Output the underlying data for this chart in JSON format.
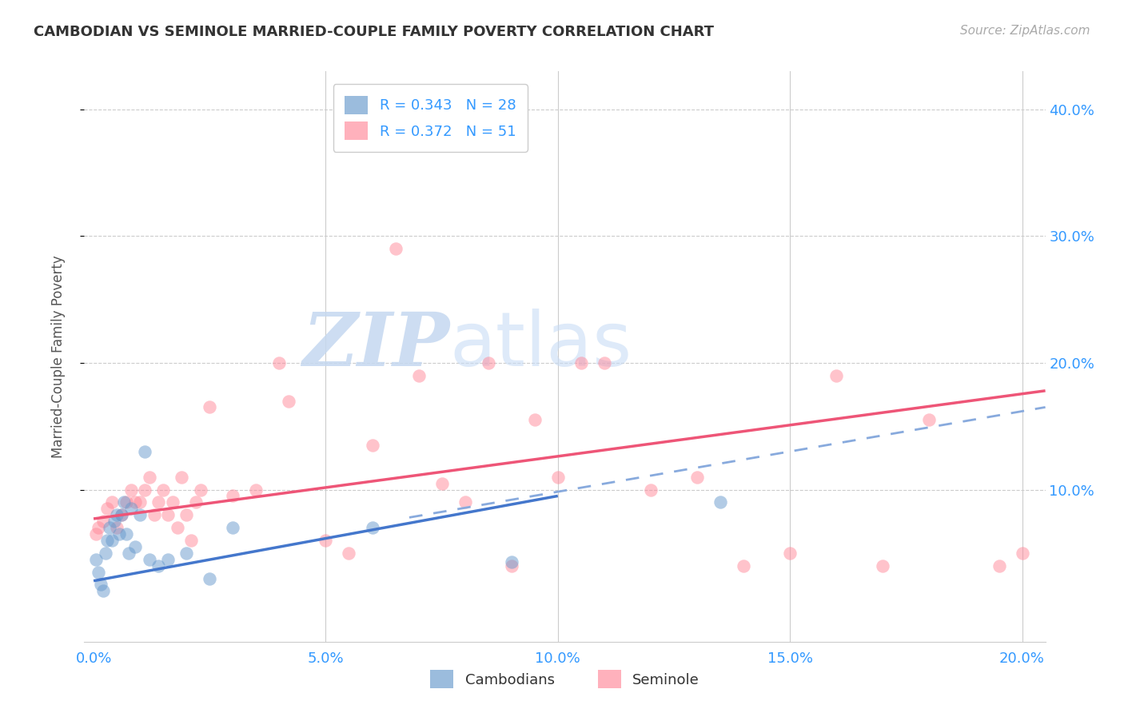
{
  "title": "CAMBODIAN VS SEMINOLE MARRIED-COUPLE FAMILY POVERTY CORRELATION CHART",
  "source": "Source: ZipAtlas.com",
  "ylabel": "Married-Couple Family Poverty",
  "xlim": [
    -0.002,
    0.205
  ],
  "ylim": [
    -0.02,
    0.43
  ],
  "xtick_vals": [
    0.0,
    0.05,
    0.1,
    0.15,
    0.2
  ],
  "xtick_labels": [
    "0.0%",
    "5.0%",
    "10.0%",
    "15.0%",
    "20.0%"
  ],
  "ytick_vals": [
    0.1,
    0.2,
    0.3,
    0.4
  ],
  "ytick_labels": [
    "10.0%",
    "20.0%",
    "30.0%",
    "40.0%"
  ],
  "cambodian_color": "#6699CC",
  "seminole_color": "#FF8899",
  "legend_label_cambodian": "R = 0.343   N = 28",
  "legend_label_seminole": "R = 0.372   N = 51",
  "bottom_legend_cambodian": "Cambodians",
  "bottom_legend_seminole": "Seminole",
  "background_color": "#FFFFFF",
  "grid_color": "#CCCCCC",
  "title_color": "#333333",
  "axis_label_color": "#3399FF",
  "cambodian_x": [
    0.0005,
    0.001,
    0.0015,
    0.002,
    0.0025,
    0.003,
    0.0035,
    0.004,
    0.0045,
    0.005,
    0.0055,
    0.006,
    0.0065,
    0.007,
    0.0075,
    0.008,
    0.009,
    0.01,
    0.011,
    0.012,
    0.014,
    0.016,
    0.02,
    0.025,
    0.03,
    0.06,
    0.09,
    0.135
  ],
  "cambodian_y": [
    0.045,
    0.035,
    0.025,
    0.02,
    0.05,
    0.06,
    0.07,
    0.06,
    0.075,
    0.08,
    0.065,
    0.08,
    0.09,
    0.065,
    0.05,
    0.085,
    0.055,
    0.08,
    0.13,
    0.045,
    0.04,
    0.045,
    0.05,
    0.03,
    0.07,
    0.07,
    0.043,
    0.09
  ],
  "seminole_x": [
    0.0005,
    0.001,
    0.002,
    0.003,
    0.004,
    0.005,
    0.006,
    0.007,
    0.008,
    0.009,
    0.01,
    0.011,
    0.012,
    0.013,
    0.014,
    0.015,
    0.016,
    0.017,
    0.018,
    0.019,
    0.02,
    0.021,
    0.022,
    0.023,
    0.025,
    0.03,
    0.035,
    0.04,
    0.042,
    0.05,
    0.06,
    0.065,
    0.07,
    0.08,
    0.085,
    0.09,
    0.1,
    0.105,
    0.11,
    0.12,
    0.13,
    0.14,
    0.15,
    0.16,
    0.17,
    0.18,
    0.195,
    0.2,
    0.075,
    0.055,
    0.095
  ],
  "seminole_y": [
    0.065,
    0.07,
    0.075,
    0.085,
    0.09,
    0.07,
    0.08,
    0.09,
    0.1,
    0.09,
    0.09,
    0.1,
    0.11,
    0.08,
    0.09,
    0.1,
    0.08,
    0.09,
    0.07,
    0.11,
    0.08,
    0.06,
    0.09,
    0.1,
    0.165,
    0.095,
    0.1,
    0.2,
    0.17,
    0.06,
    0.135,
    0.29,
    0.19,
    0.09,
    0.2,
    0.04,
    0.11,
    0.2,
    0.2,
    0.1,
    0.11,
    0.04,
    0.05,
    0.19,
    0.04,
    0.155,
    0.04,
    0.05,
    0.105,
    0.05,
    0.155
  ],
  "cam_line_x0": 0.0,
  "cam_line_x1": 0.1,
  "cam_line_y0": 0.028,
  "cam_line_y1": 0.095,
  "dash_line_x0": 0.068,
  "dash_line_x1": 0.205,
  "dash_line_y0": 0.078,
  "dash_line_y1": 0.165,
  "sem_line_x0": 0.0,
  "sem_line_x1": 0.205,
  "sem_line_y0": 0.077,
  "sem_line_y1": 0.178
}
